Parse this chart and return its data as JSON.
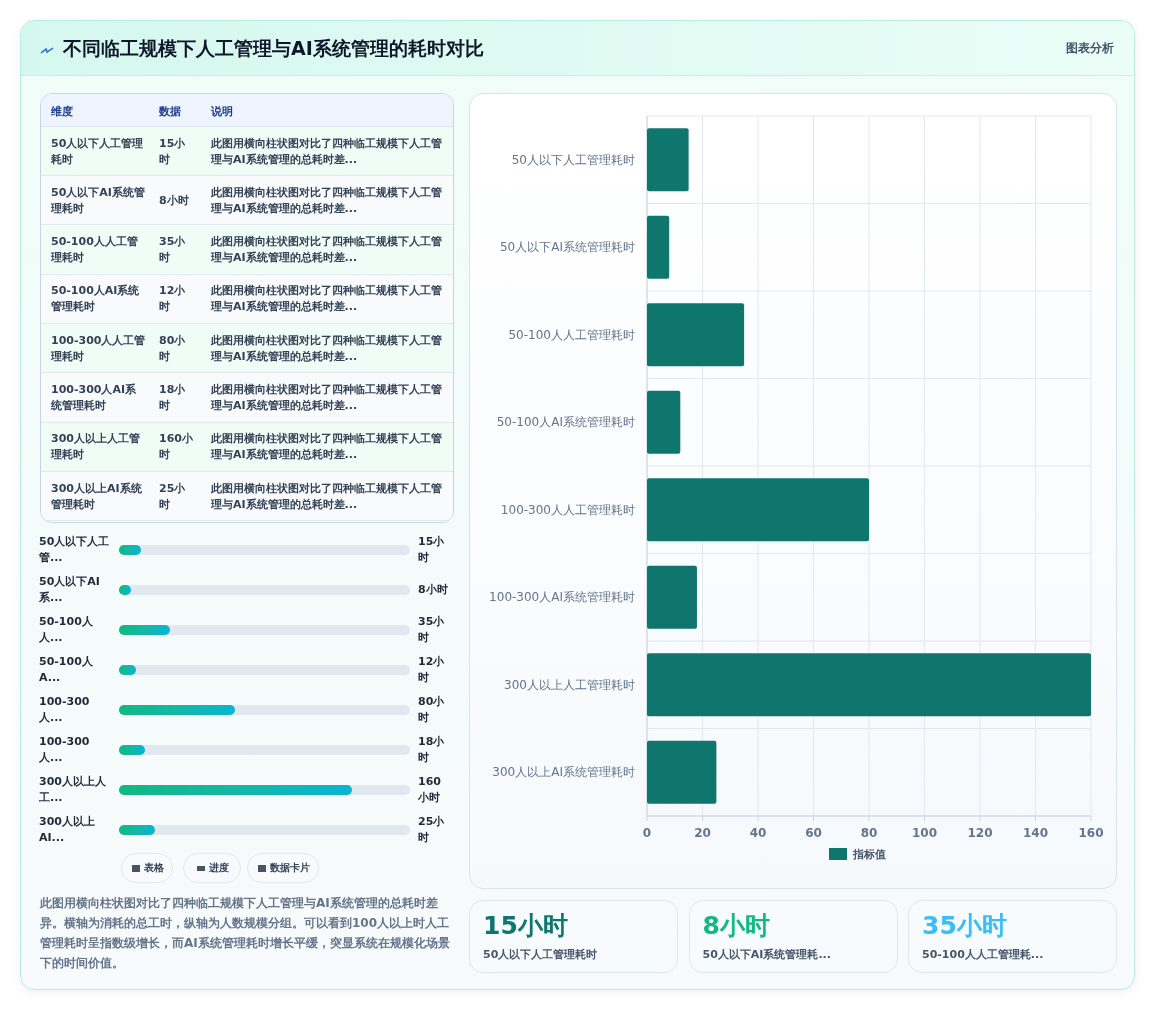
{
  "chart_data": [
    {
      "type": "other",
      "title": "不同临工规模下人工管理与AI系统管理的耗时对比",
      "annotations": [
        "图表分析"
      ]
    },
    {
      "type": "other",
      "categories": [
        "50人以下人工管理耗时",
        "50人以下AI系统管理耗时",
        "50-100人人工管理耗时",
        "50-100人AI系统管理耗时",
        "100-300人人工管理耗时",
        "100-300人AI系统管理耗时",
        "300人以上人工管理耗时",
        "300人以上AI系统管理耗时"
      ],
      "value_labels": [
        "15小时",
        "8小时",
        "35小时",
        "12小时",
        "80小时",
        "18小时",
        "160小时",
        "25小时"
      ],
      "annotations": [
        "维度",
        "数据",
        "说明",
        "此图用横向柱状图对比了四种临工规模下人工管理与AI系统管理的总耗时差...",
        "此图用横向柱状图对比了四种临工规模下人工管理与AI系统管理的总耗时差...",
        "此图用横向柱状图对比了四种临工规模下人工管理与AI系统管理的总耗时差...",
        "此图用横向柱状图对比了四种临工规模下人工管理与AI系统管理的总耗时差...",
        "此图用横向柱状图对比了四种临工规模下人工管理与AI系统管理的总耗时差...",
        "此图用横向柱状图对比了四种临工规模下人工管理与AI系统管理的总耗时差...",
        "此图用横向柱状图对比了四种临工规模下人工管理与AI系统管理的总耗时差...",
        "此图用横向柱状图对比了四种临工规模下人工管理与AI系统管理的总耗时差..."
      ]
    },
    {
      "type": "bar",
      "orientation": "horizontal",
      "categories": [
        "50人以下人工管...",
        "50人以下AI系...",
        "50-100人人...",
        "50-100人A...",
        "100-300人...",
        "100-300人...",
        "300人以上人工...",
        "300人以上AI..."
      ],
      "values": [
        15,
        8,
        35,
        12,
        80,
        18,
        160,
        25
      ],
      "value_labels": [
        "15小时",
        "8小时",
        "35小时",
        "12小时",
        "80小时",
        "18小时",
        "160小时",
        "25小时"
      ],
      "color": "#14b8a6",
      "xlim": [
        0,
        200
      ],
      "tick_labels": false
    },
    {
      "type": "other",
      "annotations": [
        "表格",
        "进度",
        "数据卡片",
        "此图用横向柱状图对比了四种临工规模下人工管理与AI系统管理的总耗时差异。横轴为消耗的总工时，纵轴为人数规模分组。可以看到100人以上时人工管理耗时呈指数级增长，而AI系统管理耗时增长平缓，突显系统在规模化场景下的时间价值。"
      ]
    },
    {
      "type": "bar",
      "orientation": "horizontal",
      "categories": [
        "50人以下人工管理耗时",
        "50人以下AI系统管理耗时",
        "50-100人人工管理耗时",
        "50-100人AI系统管理耗时",
        "100-300人人工管理耗时",
        "100-300人AI系统管理耗时",
        "300人以上人工管理耗时",
        "300人以上AI系统管理耗时"
      ],
      "series": [
        {
          "name": "指标值",
          "color": "#0f766e",
          "values": [
            15,
            8,
            35,
            12,
            80,
            18,
            160,
            25
          ]
        }
      ],
      "xlim": [
        0,
        160
      ],
      "xticks": [
        0,
        20,
        40,
        60,
        80,
        100,
        120,
        140,
        160
      ],
      "grid": true,
      "legend": "bottom"
    },
    {
      "type": "other",
      "categories": [
        "50人以下人工管理耗时",
        "50人以下AI系统管理耗...",
        "50-100人人工管理耗..."
      ],
      "value_labels": [
        "15小时",
        "8小时",
        "35小时"
      ]
    }
  ]
}
